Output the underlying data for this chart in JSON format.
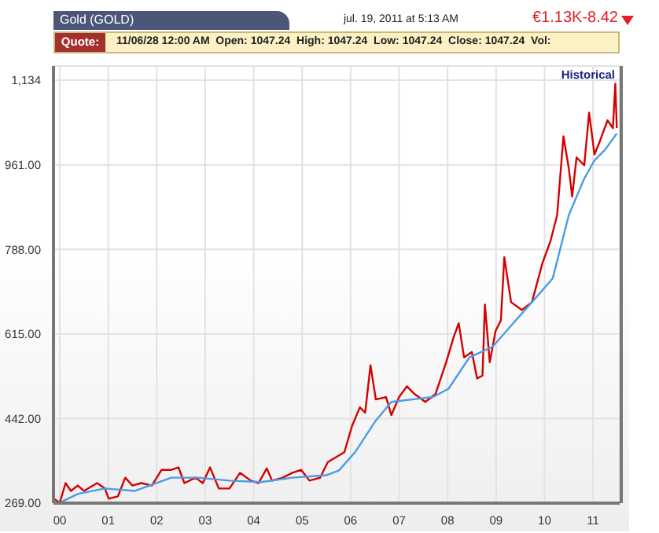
{
  "chart_data": {
    "type": "line",
    "title": "Gold (GOLD)",
    "subtitle": "jul. 19, 2011 at 5:13 AM",
    "annotations": [
      "€1.13K-8.42",
      "Quote:",
      "11/06/28 12:00 AM  Open: 1047.24  High: 1047.24  Low: 1047.24  Close: 1047.24  Vol:",
      "Historical"
    ],
    "xlim": [
      -0.13,
      11.55
    ],
    "xticks": [
      {
        "value": 0,
        "label": "00"
      },
      {
        "value": 1,
        "label": "01"
      },
      {
        "value": 2,
        "label": "02"
      },
      {
        "value": 3,
        "label": "03"
      },
      {
        "value": 4,
        "label": "04"
      },
      {
        "value": 5,
        "label": "05"
      },
      {
        "value": 6,
        "label": "06"
      },
      {
        "value": 7,
        "label": "07"
      },
      {
        "value": 8,
        "label": "08"
      },
      {
        "value": 9,
        "label": "09"
      },
      {
        "value": 10,
        "label": "10"
      },
      {
        "value": 11,
        "label": "11"
      }
    ],
    "ylim": [
      269,
      1163
    ],
    "yticks": [
      {
        "value": 269,
        "label": "269.00"
      },
      {
        "value": 442,
        "label": "442.00"
      },
      {
        "value": 615,
        "label": "615.00"
      },
      {
        "value": 788,
        "label": "788.00"
      },
      {
        "value": 961,
        "label": "961.00"
      },
      {
        "value": 1134,
        "label": "1,134"
      }
    ],
    "grid": true,
    "legend": false,
    "marker": "none",
    "line_style": "solid",
    "series": [
      {
        "color": "#d40000",
        "x": [
          -0.12,
          0,
          0.12,
          0.23,
          0.37,
          0.5,
          0.77,
          0.93,
          1.01,
          1.2,
          1.35,
          1.5,
          1.68,
          1.9,
          2.1,
          2.3,
          2.45,
          2.57,
          2.8,
          2.95,
          3.1,
          3.28,
          3.5,
          3.72,
          3.94,
          4.1,
          4.27,
          4.38,
          4.6,
          4.8,
          4.98,
          5.15,
          5.37,
          5.53,
          5.87,
          6.03,
          6.19,
          6.3,
          6.41,
          6.52,
          6.73,
          6.84,
          7.0,
          7.16,
          7.32,
          7.54,
          7.75,
          7.97,
          8.13,
          8.23,
          8.34,
          8.5,
          8.61,
          8.72,
          8.77,
          8.87,
          8.99,
          9.1,
          9.17,
          9.31,
          9.53,
          9.74,
          9.96,
          10.12,
          10.26,
          10.39,
          10.5,
          10.57,
          10.66,
          10.82,
          10.92,
          11.03,
          11.14,
          11.3,
          11.41,
          11.46,
          11.49
        ],
        "values": [
          278,
          270,
          310,
          294,
          305,
          294,
          310,
          299,
          278,
          283,
          321,
          305,
          310,
          305,
          337,
          337,
          342,
          310,
          321,
          310,
          342,
          299,
          299,
          331,
          315,
          310,
          340,
          315,
          321,
          331,
          337,
          315,
          321,
          353,
          373,
          427,
          465,
          454,
          551,
          481,
          486,
          449,
          486,
          508,
          492,
          476,
          492,
          557,
          610,
          637,
          567,
          578,
          524,
          530,
          675,
          557,
          621,
          643,
          772,
          680,
          664,
          680,
          761,
          804,
          858,
          1019,
          954,
          896,
          976,
          960,
          1068,
          982,
          1009,
          1052,
          1036,
          1127,
          1036
        ]
      },
      {
        "color": "#4a9be8",
        "x": [
          0,
          0.38,
          0.93,
          1.55,
          2.3,
          2.85,
          3.5,
          4.15,
          4.8,
          5.5,
          5.76,
          6.09,
          6.52,
          6.84,
          7.27,
          7.7,
          8.02,
          8.45,
          8.93,
          9.31,
          9.74,
          10.17,
          10.5,
          10.82,
          11.03,
          11.25,
          11.49
        ],
        "values": [
          270,
          288,
          299,
          294,
          321,
          321,
          315,
          312,
          321,
          326,
          336,
          373,
          438,
          476,
          481,
          486,
          503,
          567,
          589,
          632,
          680,
          729,
          858,
          933,
          970,
          992,
          1025
        ]
      }
    ]
  }
}
